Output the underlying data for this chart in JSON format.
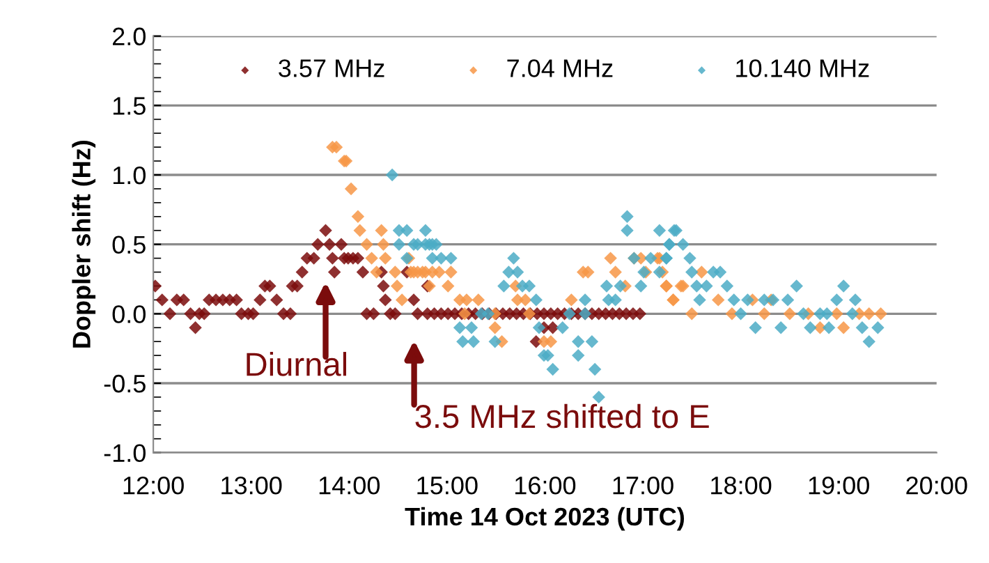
{
  "chart_data": {
    "type": "scatter",
    "xlabel": "Time 14 Oct 2023 (UTC)",
    "ylabel": "Doppler shift (Hz)",
    "xlim": [
      12,
      20
    ],
    "ylim": [
      -1,
      2
    ],
    "xticks": [
      {
        "value": 12,
        "label": "12:00"
      },
      {
        "value": 13,
        "label": "13:00"
      },
      {
        "value": 14,
        "label": "14:00"
      },
      {
        "value": 15,
        "label": "15:00"
      },
      {
        "value": 16,
        "label": "16:00"
      },
      {
        "value": 17,
        "label": "17:00"
      },
      {
        "value": 18,
        "label": "18:00"
      },
      {
        "value": 19,
        "label": "19:00"
      },
      {
        "value": 20,
        "label": "20:00"
      }
    ],
    "yticks": [
      {
        "value": -1,
        "label": "-1.0"
      },
      {
        "value": -0.5,
        "label": "-0.5"
      },
      {
        "value": 0,
        "label": "0.0"
      },
      {
        "value": 0.5,
        "label": "0.5"
      },
      {
        "value": 1,
        "label": "1.0"
      },
      {
        "value": 1.5,
        "label": "1.5"
      },
      {
        "value": 2,
        "label": "2.0"
      }
    ],
    "grid": "y",
    "legend": "top",
    "marker": "diamond",
    "series": [
      {
        "name": "3.57 MHz",
        "color": "#7b0c0c",
        "x": [
          12.02,
          12.09,
          12.17,
          12.24,
          12.31,
          12.38,
          12.43,
          12.47,
          12.52,
          12.57,
          12.64,
          12.71,
          12.78,
          12.85,
          12.9,
          12.97,
          13.02,
          13.09,
          13.14,
          13.19,
          13.26,
          13.33,
          13.4,
          13.42,
          13.47,
          13.52,
          13.57,
          13.64,
          13.68,
          13.76,
          13.8,
          13.83,
          13.85,
          13.92,
          13.95,
          13.99,
          14.04,
          14.09,
          14.14,
          14.18,
          14.25,
          14.33,
          14.35,
          14.37,
          14.42,
          14.47,
          14.59,
          14.66,
          14.7,
          14.8,
          14.8,
          14.87,
          14.94,
          15.01,
          15.08,
          15.15,
          15.22,
          15.29,
          15.36,
          15.43,
          15.5,
          15.57,
          15.64,
          15.71,
          15.78,
          15.85,
          15.91,
          15.92,
          15.99,
          15.99,
          16.06,
          16.08,
          16.13,
          16.2,
          16.27,
          16.34,
          16.41,
          16.48,
          16.55,
          16.62,
          16.69,
          16.76,
          16.83,
          16.9,
          16.97
        ],
        "values": [
          0.2,
          0.1,
          0.0,
          0.1,
          0.1,
          0.0,
          -0.1,
          0.0,
          0.0,
          0.1,
          0.1,
          0.1,
          0.1,
          0.1,
          0.0,
          0.0,
          0.0,
          0.1,
          0.2,
          0.2,
          0.1,
          0.0,
          0.0,
          0.2,
          0.2,
          0.3,
          0.4,
          0.4,
          0.5,
          0.6,
          0.5,
          0.4,
          0.3,
          0.5,
          0.4,
          0.4,
          0.4,
          0.4,
          0.3,
          0.0,
          0.0,
          0.3,
          0.2,
          0.1,
          0.0,
          0.0,
          0.3,
          0.1,
          0.0,
          0.0,
          0.2,
          0.0,
          0.0,
          0.0,
          0.0,
          0.0,
          0.0,
          0.0,
          0.0,
          0.0,
          0.0,
          0.0,
          0.0,
          0.0,
          0.0,
          0.0,
          -0.2,
          0.0,
          0.0,
          -0.1,
          0.0,
          -0.1,
          0.0,
          0.0,
          0.0,
          0.0,
          0.0,
          0.0,
          0.0,
          0.0,
          0.0,
          0.0,
          0.0,
          0.0,
          0.0
        ]
      },
      {
        "name": "7.04 MHz",
        "color": "#f79646",
        "x": [
          13.83,
          13.87,
          13.95,
          13.97,
          14.02,
          14.09,
          14.11,
          14.18,
          14.23,
          14.28,
          14.33,
          14.35,
          14.37,
          14.47,
          14.49,
          14.54,
          14.61,
          14.63,
          14.66,
          14.7,
          14.75,
          14.78,
          14.82,
          14.85,
          14.92,
          15.01,
          15.04,
          15.13,
          15.18,
          15.2,
          15.32,
          15.49,
          15.49,
          15.56,
          15.7,
          15.72,
          15.8,
          15.84,
          15.99,
          16.06,
          16.27,
          16.39,
          16.44,
          16.67,
          16.72,
          16.82,
          16.91,
          16.98,
          17.03,
          17.15,
          17.17,
          17.2,
          17.24,
          17.24,
          17.31,
          17.31,
          17.39,
          17.41,
          17.5,
          17.6,
          17.77,
          17.91,
          18.12,
          18.24,
          18.31,
          18.5,
          18.69,
          18.81,
          18.98,
          19.05,
          19.21,
          19.31,
          19.43
        ],
        "values": [
          1.2,
          1.2,
          1.1,
          1.1,
          0.9,
          0.7,
          0.6,
          0.5,
          0.4,
          0.3,
          0.6,
          0.5,
          0.4,
          0.3,
          0.2,
          0.1,
          0.4,
          0.3,
          0.3,
          0.3,
          0.3,
          0.3,
          0.2,
          0.3,
          0.3,
          0.2,
          0.3,
          0.1,
          0.0,
          0.1,
          0.1,
          0.0,
          -0.1,
          -0.2,
          0.2,
          0.1,
          0.1,
          0.0,
          -0.2,
          -0.2,
          0.1,
          0.3,
          0.3,
          0.4,
          0.3,
          0.2,
          0.4,
          0.4,
          0.3,
          0.4,
          0.4,
          0.3,
          0.2,
          0.2,
          0.1,
          0.1,
          0.2,
          0.2,
          0.0,
          0.3,
          0.1,
          0.0,
          0.1,
          0.0,
          0.1,
          0.0,
          0.0,
          -0.1,
          0.0,
          -0.1,
          0.0,
          0.0,
          0.0
        ]
      },
      {
        "name": "10.140 MHz",
        "color": "#4bacc6",
        "x": [
          14.44,
          14.51,
          14.51,
          14.59,
          14.59,
          14.66,
          14.7,
          14.78,
          14.78,
          14.82,
          14.85,
          14.85,
          14.89,
          14.94,
          15.04,
          15.13,
          15.16,
          15.25,
          15.27,
          15.35,
          15.42,
          15.49,
          15.58,
          15.63,
          15.68,
          15.72,
          15.77,
          15.84,
          15.91,
          15.94,
          15.99,
          16.03,
          16.08,
          16.18,
          16.25,
          16.34,
          16.34,
          16.41,
          16.41,
          16.48,
          16.51,
          16.55,
          16.63,
          16.65,
          16.72,
          16.77,
          16.84,
          16.84,
          16.91,
          16.98,
          17.01,
          17.08,
          17.17,
          17.17,
          17.24,
          17.24,
          17.27,
          17.27,
          17.32,
          17.34,
          17.41,
          17.48,
          17.5,
          17.55,
          17.58,
          17.65,
          17.72,
          17.79,
          17.86,
          17.93,
          18.0,
          18.07,
          18.15,
          18.24,
          18.33,
          18.41,
          18.48,
          18.57,
          18.64,
          18.71,
          18.81,
          18.88,
          18.9,
          18.98,
          19.05,
          19.14,
          19.17,
          19.24,
          19.31,
          19.4
        ],
        "values": [
          1.0,
          0.6,
          0.5,
          0.6,
          0.4,
          0.5,
          0.5,
          0.5,
          0.6,
          0.5,
          0.5,
          0.4,
          0.5,
          0.4,
          0.4,
          -0.1,
          -0.2,
          -0.1,
          -0.2,
          0.0,
          0.0,
          -0.2,
          0.2,
          0.3,
          0.4,
          0.3,
          0.2,
          0.2,
          0.1,
          -0.1,
          -0.3,
          -0.3,
          -0.4,
          -0.1,
          0.0,
          -0.2,
          -0.3,
          0.1,
          0.0,
          -0.2,
          -0.4,
          -0.6,
          0.2,
          0.1,
          0.1,
          0.2,
          0.7,
          0.6,
          0.4,
          0.2,
          0.3,
          0.4,
          0.3,
          0.6,
          0.4,
          0.4,
          0.5,
          0.5,
          0.6,
          0.6,
          0.5,
          0.4,
          0.3,
          0.2,
          0.1,
          0.2,
          0.3,
          0.3,
          0.2,
          0.1,
          0.0,
          0.1,
          -0.1,
          0.1,
          0.1,
          -0.1,
          0.1,
          0.2,
          0.0,
          -0.1,
          0.0,
          0.0,
          -0.1,
          0.1,
          0.2,
          0.0,
          0.1,
          -0.1,
          -0.2,
          -0.1
        ]
      }
    ],
    "annotations": [
      "Diurnal",
      "3.5 MHz shifted to E"
    ]
  }
}
